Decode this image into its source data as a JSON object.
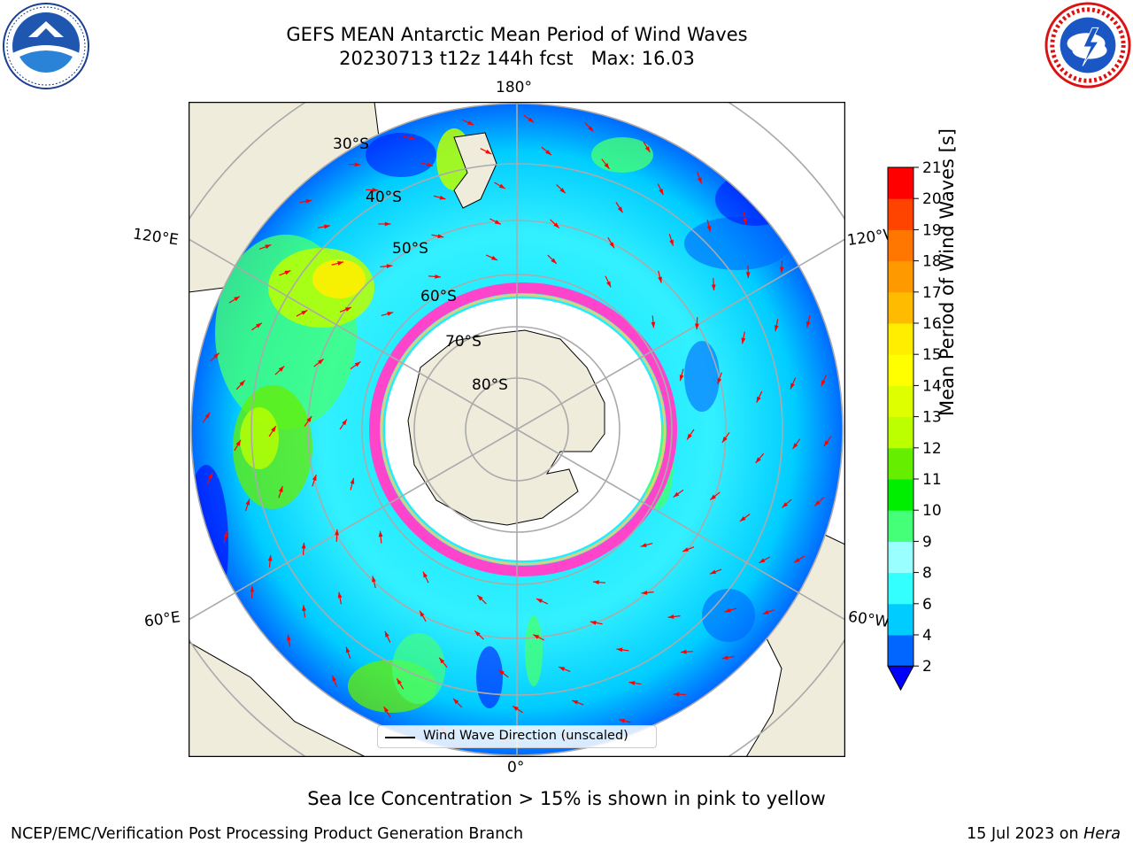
{
  "title": {
    "line1": "GEFS MEAN Antarctic Mean Period of Wind Waves",
    "line2": "20230713 t12z 144h fcst   Max: 16.03"
  },
  "map": {
    "projection": "south-polar-stereographic",
    "lon_labels": {
      "top": "180°",
      "left_upper": "120°E",
      "right_upper": "120°W",
      "left_lower": "60°E",
      "right_lower": "60°W",
      "bottom": "0°"
    },
    "lat_labels": [
      "30°S",
      "40°S",
      "50°S",
      "60°S",
      "70°S",
      "80°S"
    ],
    "colors": {
      "land": "#efecdc",
      "ice": "#ffffff",
      "ice_edge": "#ff44cc",
      "arrows": "#ff0000",
      "graticule": "#aaaaaa"
    }
  },
  "legend": {
    "label": "Wind Wave Direction (unscaled)"
  },
  "colorbar": {
    "title": "Mean Period of Wind Waves [s]",
    "ticks": [
      "21",
      "20",
      "19",
      "18",
      "17",
      "16",
      "15",
      "14",
      "13",
      "12",
      "11",
      "10",
      "9",
      "8",
      "6",
      "4",
      "2"
    ],
    "levels": [
      2,
      4,
      6,
      8,
      9,
      10,
      11,
      12,
      13,
      14,
      15,
      16,
      17,
      18,
      19,
      20,
      21
    ],
    "colors": [
      "#0066ff",
      "#00ccff",
      "#33ffff",
      "#99ffff",
      "#44ff77",
      "#00ee00",
      "#66ee00",
      "#bbff00",
      "#ddff00",
      "#ffff00",
      "#ffee00",
      "#ffbb00",
      "#ff9900",
      "#ff7700",
      "#ff4400",
      "#ff0000"
    ],
    "extend_color": "#0000ff"
  },
  "notes": {
    "sea_ice": "Sea Ice Concentration > 15% is shown in pink to yellow"
  },
  "footer": {
    "credit": "NCEP/EMC/Verification Post Processing Product Generation Branch",
    "date_prefix": "15 Jul 2023 on ",
    "machine": "Hera"
  },
  "logos": {
    "left_icon": "noaa-logo",
    "right_icon": "nws-logo"
  }
}
